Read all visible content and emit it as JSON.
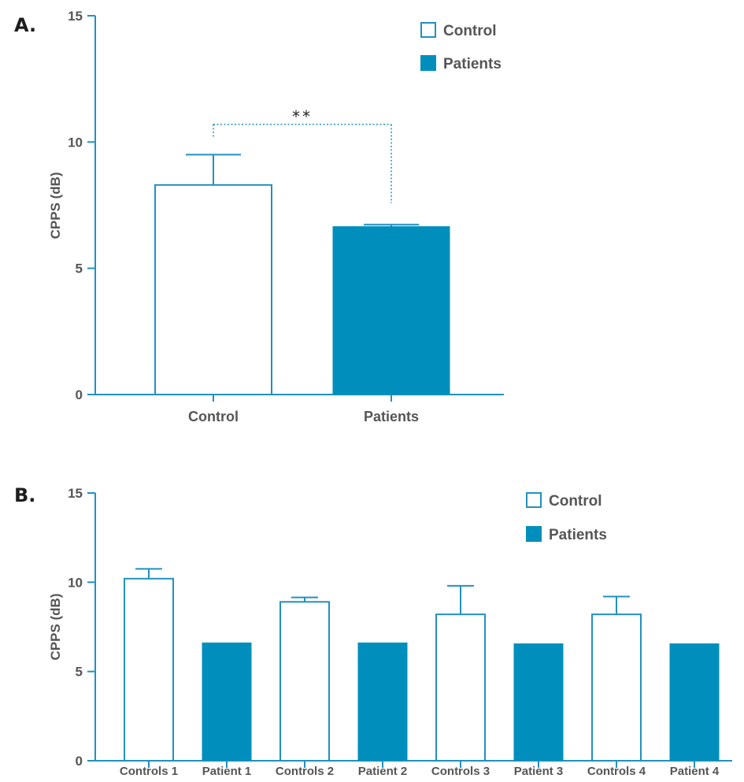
{
  "colors": {
    "accent": "#008fbd",
    "axis": "#2291bf",
    "text": "#555555"
  },
  "chart_data": [
    {
      "type": "bar",
      "panel_label": "A.",
      "categories": [
        "Control",
        "Patients"
      ],
      "values": [
        8.3,
        6.65
      ],
      "errors": [
        1.2,
        0.08
      ],
      "fills": [
        "open",
        "filled"
      ],
      "ylabel": "CPPS (dB)",
      "xlabel": "",
      "ylim": [
        0,
        15
      ],
      "yticks": [
        "0",
        "5",
        "10",
        "15"
      ],
      "ytick_values": [
        0,
        5,
        10,
        15
      ],
      "legend": {
        "placement": "top-right",
        "entries": [
          "Control",
          "Patients"
        ]
      },
      "annotation": {
        "text": "**",
        "between": [
          0,
          1
        ]
      }
    },
    {
      "type": "bar",
      "panel_label": "B.",
      "categories": [
        "Controls 1",
        "Patient 1",
        "Controls 2",
        "Patient 2",
        "Controls 3",
        "Patient 3",
        "Controls 4",
        "Patient 4"
      ],
      "values": [
        10.2,
        6.6,
        8.9,
        6.6,
        8.2,
        6.55,
        8.2,
        6.55
      ],
      "errors": [
        0.55,
        0,
        0.25,
        0,
        1.6,
        0,
        1.0,
        0
      ],
      "fills": [
        "open",
        "filled",
        "open",
        "filled",
        "open",
        "filled",
        "open",
        "filled"
      ],
      "ylabel": "CPPS (dB)",
      "xlabel": "",
      "ylim": [
        0,
        15
      ],
      "yticks": [
        "0",
        "5",
        "10",
        "15"
      ],
      "ytick_values": [
        0,
        5,
        10,
        15
      ],
      "legend": {
        "placement": "top-right",
        "entries": [
          "Control",
          "Patients"
        ]
      }
    }
  ]
}
